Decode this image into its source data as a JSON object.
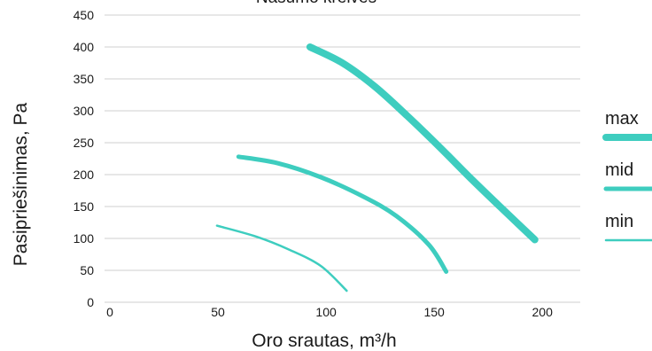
{
  "chart_data": {
    "type": "line",
    "title": "Našumo kreivės",
    "xlabel": "Oro srautas, m³/h",
    "ylabel": "Pasipriešinimas, Pa",
    "xlim": [
      0,
      220
    ],
    "ylim": [
      0,
      450
    ],
    "x_ticks": [
      0,
      50,
      100,
      150,
      200
    ],
    "y_ticks": [
      0,
      50,
      100,
      150,
      200,
      250,
      300,
      350,
      400,
      450
    ],
    "grid": "horizontal",
    "legend_placement": "right",
    "series": [
      {
        "name": "max",
        "color": "#3ecdbf",
        "width": "thick",
        "x": [
          95,
          110,
          125,
          140,
          155,
          170,
          185,
          199
        ],
        "y": [
          400,
          375,
          338,
          292,
          243,
          192,
          143,
          98
        ]
      },
      {
        "name": "mid",
        "color": "#3ecdbf",
        "width": "medium",
        "x": [
          62,
          80,
          100,
          120,
          135,
          150,
          158
        ],
        "y": [
          228,
          218,
          196,
          165,
          135,
          90,
          48
        ]
      },
      {
        "name": "min",
        "color": "#3ecdbf",
        "width": "thin",
        "x": [
          52,
          70,
          85,
          100,
          112
        ],
        "y": [
          120,
          103,
          83,
          57,
          18
        ]
      }
    ]
  }
}
